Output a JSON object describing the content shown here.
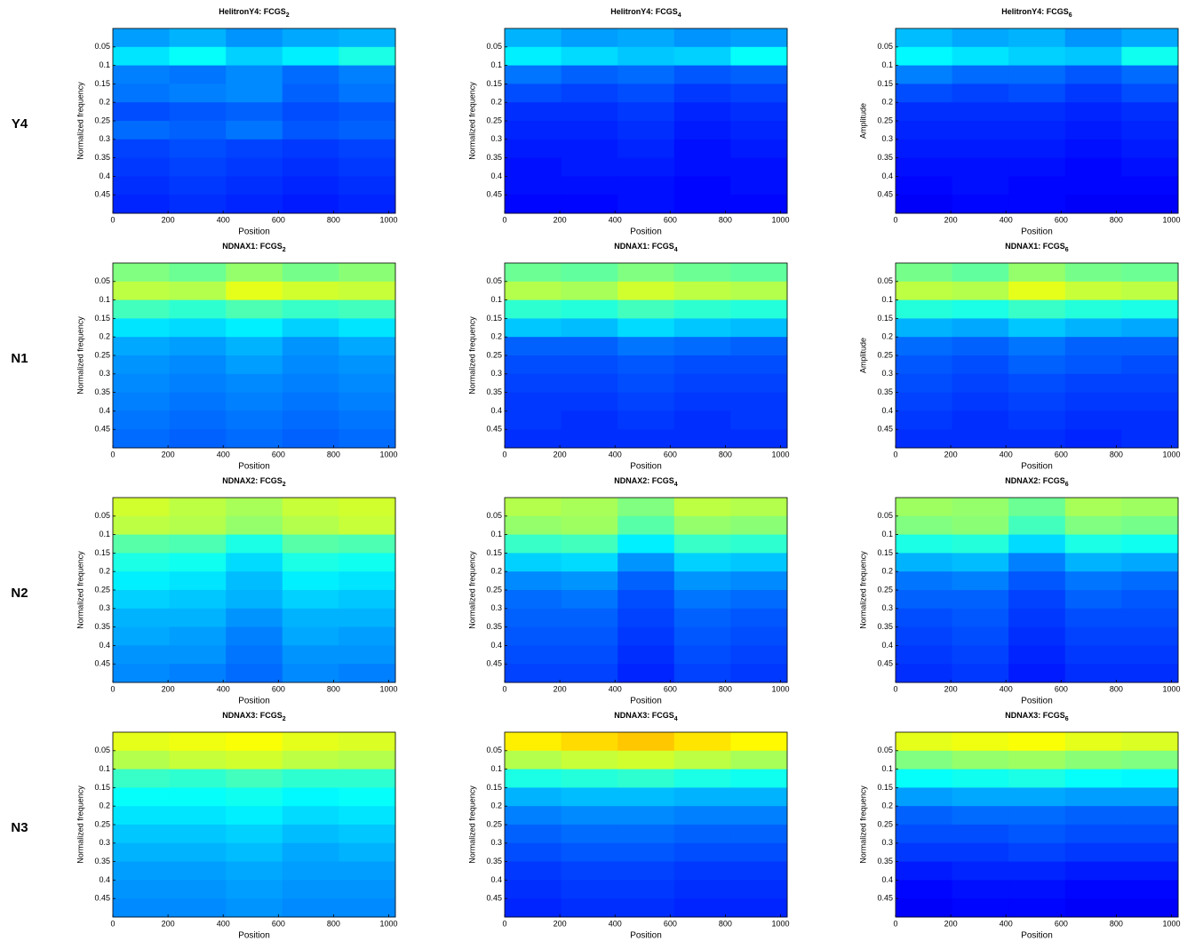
{
  "row_labels": [
    "Y4",
    "N1",
    "N2",
    "N3"
  ],
  "chart_data": [
    {
      "type": "heatmap",
      "title": "HelitronY4: FCGS",
      "title_subscript": "2",
      "xlabel": "Position",
      "ylabel": "Normalized frequency",
      "xlim": [
        0,
        1024
      ],
      "ylim": [
        0,
        0.5
      ],
      "xticks": [
        0,
        200,
        400,
        600,
        800,
        1000
      ],
      "yticks": [
        0.05,
        0.1,
        0.15,
        0.2,
        0.25,
        0.3,
        0.35,
        0.4,
        0.45
      ],
      "colormap": "jet",
      "zlim": [
        0,
        1
      ],
      "values": [
        [
          0.28,
          0.3,
          0.27,
          0.29,
          0.3
        ],
        [
          0.35,
          0.38,
          0.33,
          0.36,
          0.4
        ],
        [
          0.25,
          0.24,
          0.26,
          0.23,
          0.25
        ],
        [
          0.24,
          0.25,
          0.26,
          0.22,
          0.24
        ],
        [
          0.2,
          0.21,
          0.22,
          0.2,
          0.21
        ],
        [
          0.23,
          0.22,
          0.24,
          0.21,
          0.22
        ],
        [
          0.19,
          0.2,
          0.19,
          0.18,
          0.19
        ],
        [
          0.18,
          0.19,
          0.18,
          0.17,
          0.18
        ],
        [
          0.17,
          0.18,
          0.17,
          0.16,
          0.17
        ],
        [
          0.16,
          0.17,
          0.16,
          0.15,
          0.16
        ]
      ]
    },
    {
      "type": "heatmap",
      "title": "HelitronY4: FCGS",
      "title_subscript": "4",
      "xlabel": "Position",
      "ylabel": "Normalized frequency",
      "xlim": [
        0,
        1024
      ],
      "ylim": [
        0,
        0.5
      ],
      "xticks": [
        0,
        200,
        400,
        600,
        800,
        1000
      ],
      "yticks": [
        0.05,
        0.1,
        0.15,
        0.2,
        0.25,
        0.3,
        0.35,
        0.4,
        0.45
      ],
      "colormap": "jet",
      "zlim": [
        0,
        1
      ],
      "values": [
        [
          0.3,
          0.28,
          0.29,
          0.27,
          0.28
        ],
        [
          0.36,
          0.34,
          0.32,
          0.33,
          0.38
        ],
        [
          0.24,
          0.22,
          0.23,
          0.21,
          0.22
        ],
        [
          0.2,
          0.19,
          0.2,
          0.18,
          0.19
        ],
        [
          0.17,
          0.17,
          0.18,
          0.16,
          0.17
        ],
        [
          0.16,
          0.16,
          0.17,
          0.15,
          0.16
        ],
        [
          0.15,
          0.15,
          0.16,
          0.14,
          0.15
        ],
        [
          0.14,
          0.15,
          0.15,
          0.14,
          0.14
        ],
        [
          0.14,
          0.14,
          0.14,
          0.13,
          0.14
        ],
        [
          0.13,
          0.13,
          0.14,
          0.13,
          0.13
        ]
      ]
    },
    {
      "type": "heatmap",
      "title": "HelitronY4: FCGS",
      "title_subscript": "6",
      "xlabel": "Position",
      "ylabel": "Amplitude",
      "xlim": [
        0,
        1024
      ],
      "ylim": [
        0,
        0.5
      ],
      "xticks": [
        0,
        200,
        400,
        600,
        800,
        1000
      ],
      "yticks": [
        0.05,
        0.1,
        0.15,
        0.2,
        0.25,
        0.3,
        0.35,
        0.4,
        0.45
      ],
      "colormap": "jet",
      "zlim": [
        0,
        1
      ],
      "values": [
        [
          0.31,
          0.29,
          0.3,
          0.27,
          0.29
        ],
        [
          0.37,
          0.35,
          0.33,
          0.32,
          0.39
        ],
        [
          0.25,
          0.23,
          0.23,
          0.21,
          0.23
        ],
        [
          0.2,
          0.19,
          0.2,
          0.18,
          0.2
        ],
        [
          0.17,
          0.17,
          0.17,
          0.16,
          0.17
        ],
        [
          0.16,
          0.16,
          0.16,
          0.15,
          0.16
        ],
        [
          0.15,
          0.15,
          0.15,
          0.14,
          0.15
        ],
        [
          0.14,
          0.14,
          0.14,
          0.13,
          0.14
        ],
        [
          0.13,
          0.14,
          0.13,
          0.13,
          0.13
        ],
        [
          0.12,
          0.13,
          0.13,
          0.12,
          0.12
        ]
      ]
    },
    {
      "type": "heatmap",
      "title": "NDNAX1: FCGS",
      "title_subscript": "2",
      "xlabel": "Position",
      "ylabel": "Normalized frequency",
      "xlim": [
        0,
        1024
      ],
      "ylim": [
        0,
        0.5
      ],
      "xticks": [
        0,
        200,
        400,
        600,
        800,
        1000
      ],
      "yticks": [
        0.05,
        0.1,
        0.15,
        0.2,
        0.25,
        0.3,
        0.35,
        0.4,
        0.45
      ],
      "colormap": "jet",
      "zlim": [
        0,
        1
      ],
      "values": [
        [
          0.5,
          0.48,
          0.52,
          0.49,
          0.51
        ],
        [
          0.56,
          0.55,
          0.6,
          0.58,
          0.57
        ],
        [
          0.44,
          0.42,
          0.45,
          0.43,
          0.44
        ],
        [
          0.35,
          0.34,
          0.36,
          0.33,
          0.35
        ],
        [
          0.29,
          0.28,
          0.3,
          0.27,
          0.29
        ],
        [
          0.27,
          0.26,
          0.28,
          0.26,
          0.27
        ],
        [
          0.26,
          0.25,
          0.26,
          0.25,
          0.26
        ],
        [
          0.25,
          0.24,
          0.25,
          0.24,
          0.25
        ],
        [
          0.24,
          0.23,
          0.24,
          0.23,
          0.24
        ],
        [
          0.23,
          0.22,
          0.23,
          0.22,
          0.23
        ]
      ]
    },
    {
      "type": "heatmap",
      "title": "NDNAX1: FCGS",
      "title_subscript": "4",
      "xlabel": "Position",
      "ylabel": "Normalized frequency",
      "xlim": [
        0,
        1024
      ],
      "ylim": [
        0,
        0.5
      ],
      "xticks": [
        0,
        200,
        400,
        600,
        800,
        1000
      ],
      "yticks": [
        0.05,
        0.1,
        0.15,
        0.2,
        0.25,
        0.3,
        0.35,
        0.4,
        0.45
      ],
      "colormap": "jet",
      "zlim": [
        0,
        1
      ],
      "values": [
        [
          0.48,
          0.47,
          0.5,
          0.48,
          0.47
        ],
        [
          0.55,
          0.54,
          0.58,
          0.56,
          0.55
        ],
        [
          0.42,
          0.41,
          0.44,
          0.42,
          0.41
        ],
        [
          0.32,
          0.31,
          0.34,
          0.32,
          0.31
        ],
        [
          0.22,
          0.22,
          0.24,
          0.23,
          0.22
        ],
        [
          0.2,
          0.2,
          0.21,
          0.2,
          0.2
        ],
        [
          0.19,
          0.19,
          0.2,
          0.19,
          0.19
        ],
        [
          0.18,
          0.18,
          0.19,
          0.18,
          0.18
        ],
        [
          0.18,
          0.17,
          0.18,
          0.17,
          0.18
        ],
        [
          0.17,
          0.17,
          0.17,
          0.17,
          0.17
        ]
      ]
    },
    {
      "type": "heatmap",
      "title": "NDNAX1: FCGS",
      "title_subscript": "6",
      "xlabel": "Position",
      "ylabel": "Amplitude",
      "xlim": [
        0,
        1024
      ],
      "ylim": [
        0,
        0.5
      ],
      "xticks": [
        0,
        200,
        400,
        600,
        800,
        1000
      ],
      "yticks": [
        0.05,
        0.1,
        0.15,
        0.2,
        0.25,
        0.3,
        0.35,
        0.4,
        0.45
      ],
      "colormap": "jet",
      "zlim": [
        0,
        1
      ],
      "values": [
        [
          0.49,
          0.47,
          0.52,
          0.49,
          0.48
        ],
        [
          0.56,
          0.55,
          0.6,
          0.57,
          0.56
        ],
        [
          0.41,
          0.4,
          0.43,
          0.41,
          0.4
        ],
        [
          0.3,
          0.29,
          0.32,
          0.3,
          0.29
        ],
        [
          0.23,
          0.22,
          0.24,
          0.22,
          0.22
        ],
        [
          0.21,
          0.2,
          0.22,
          0.21,
          0.2
        ],
        [
          0.2,
          0.19,
          0.2,
          0.19,
          0.19
        ],
        [
          0.19,
          0.18,
          0.19,
          0.18,
          0.18
        ],
        [
          0.18,
          0.17,
          0.18,
          0.17,
          0.17
        ],
        [
          0.17,
          0.17,
          0.17,
          0.16,
          0.17
        ]
      ]
    },
    {
      "type": "heatmap",
      "title": "NDNAX2: FCGS",
      "title_subscript": "2",
      "xlabel": "Position",
      "ylabel": "Normalized frequency",
      "xlim": [
        0,
        1024
      ],
      "ylim": [
        0,
        0.5
      ],
      "xticks": [
        0,
        200,
        400,
        600,
        800,
        1000
      ],
      "yticks": [
        0.05,
        0.1,
        0.15,
        0.2,
        0.25,
        0.3,
        0.35,
        0.4,
        0.45
      ],
      "colormap": "jet",
      "zlim": [
        0,
        1
      ],
      "values": [
        [
          0.58,
          0.56,
          0.54,
          0.57,
          0.58
        ],
        [
          0.56,
          0.55,
          0.52,
          0.55,
          0.57
        ],
        [
          0.46,
          0.45,
          0.4,
          0.46,
          0.45
        ],
        [
          0.4,
          0.39,
          0.34,
          0.4,
          0.39
        ],
        [
          0.36,
          0.35,
          0.31,
          0.36,
          0.35
        ],
        [
          0.33,
          0.32,
          0.3,
          0.33,
          0.32
        ],
        [
          0.3,
          0.3,
          0.27,
          0.3,
          0.3
        ],
        [
          0.29,
          0.28,
          0.25,
          0.29,
          0.28
        ],
        [
          0.27,
          0.27,
          0.24,
          0.27,
          0.27
        ],
        [
          0.26,
          0.25,
          0.23,
          0.26,
          0.25
        ]
      ]
    },
    {
      "type": "heatmap",
      "title": "NDNAX2: FCGS",
      "title_subscript": "4",
      "xlabel": "Position",
      "ylabel": "Normalized frequency",
      "xlim": [
        0,
        1024
      ],
      "ylim": [
        0,
        0.5
      ],
      "xticks": [
        0,
        200,
        400,
        600,
        800,
        1000
      ],
      "yticks": [
        0.05,
        0.1,
        0.15,
        0.2,
        0.25,
        0.3,
        0.35,
        0.4,
        0.45
      ],
      "colormap": "jet",
      "zlim": [
        0,
        1
      ],
      "values": [
        [
          0.55,
          0.54,
          0.5,
          0.56,
          0.55
        ],
        [
          0.52,
          0.53,
          0.46,
          0.52,
          0.51
        ],
        [
          0.43,
          0.44,
          0.36,
          0.43,
          0.42
        ],
        [
          0.33,
          0.34,
          0.27,
          0.33,
          0.32
        ],
        [
          0.26,
          0.27,
          0.22,
          0.27,
          0.26
        ],
        [
          0.23,
          0.24,
          0.2,
          0.24,
          0.23
        ],
        [
          0.22,
          0.22,
          0.19,
          0.22,
          0.21
        ],
        [
          0.21,
          0.21,
          0.18,
          0.21,
          0.2
        ],
        [
          0.2,
          0.2,
          0.17,
          0.2,
          0.19
        ],
        [
          0.19,
          0.19,
          0.16,
          0.19,
          0.18
        ]
      ]
    },
    {
      "type": "heatmap",
      "title": "NDNAX2: FCGS",
      "title_subscript": "6",
      "xlabel": "Position",
      "ylabel": "Normalized frequency",
      "xlim": [
        0,
        1024
      ],
      "ylim": [
        0,
        0.5
      ],
      "xticks": [
        0,
        200,
        400,
        600,
        800,
        1000
      ],
      "yticks": [
        0.05,
        0.1,
        0.15,
        0.2,
        0.25,
        0.3,
        0.35,
        0.4,
        0.45
      ],
      "colormap": "jet",
      "zlim": [
        0,
        1
      ],
      "values": [
        [
          0.53,
          0.52,
          0.48,
          0.54,
          0.53
        ],
        [
          0.5,
          0.51,
          0.44,
          0.5,
          0.49
        ],
        [
          0.4,
          0.41,
          0.34,
          0.4,
          0.39
        ],
        [
          0.3,
          0.31,
          0.25,
          0.3,
          0.29
        ],
        [
          0.24,
          0.25,
          0.21,
          0.24,
          0.23
        ],
        [
          0.22,
          0.22,
          0.19,
          0.22,
          0.21
        ],
        [
          0.2,
          0.21,
          0.18,
          0.2,
          0.2
        ],
        [
          0.19,
          0.2,
          0.17,
          0.19,
          0.19
        ],
        [
          0.18,
          0.19,
          0.16,
          0.18,
          0.18
        ],
        [
          0.17,
          0.18,
          0.15,
          0.17,
          0.17
        ]
      ]
    },
    {
      "type": "heatmap",
      "title": "NDNAX3: FCGS",
      "title_subscript": "2",
      "xlabel": "Position",
      "ylabel": "Normalized frequency",
      "xlim": [
        0,
        1024
      ],
      "ylim": [
        0,
        0.5
      ],
      "xticks": [
        0,
        200,
        400,
        600,
        800,
        1000
      ],
      "yticks": [
        0.05,
        0.1,
        0.15,
        0.2,
        0.25,
        0.3,
        0.35,
        0.4,
        0.45
      ],
      "colormap": "jet",
      "zlim": [
        0,
        1
      ],
      "values": [
        [
          0.6,
          0.61,
          0.62,
          0.6,
          0.59
        ],
        [
          0.55,
          0.57,
          0.58,
          0.56,
          0.55
        ],
        [
          0.43,
          0.42,
          0.44,
          0.42,
          0.42
        ],
        [
          0.38,
          0.38,
          0.39,
          0.37,
          0.38
        ],
        [
          0.35,
          0.35,
          0.36,
          0.34,
          0.35
        ],
        [
          0.32,
          0.32,
          0.33,
          0.31,
          0.32
        ],
        [
          0.3,
          0.3,
          0.31,
          0.29,
          0.3
        ],
        [
          0.28,
          0.28,
          0.29,
          0.28,
          0.28
        ],
        [
          0.27,
          0.27,
          0.28,
          0.27,
          0.27
        ],
        [
          0.26,
          0.26,
          0.27,
          0.26,
          0.26
        ]
      ]
    },
    {
      "type": "heatmap",
      "title": "NDNAX3: FCGS",
      "title_subscript": "4",
      "xlabel": "Position",
      "ylabel": "Normalized frequency",
      "xlim": [
        0,
        1024
      ],
      "ylim": [
        0,
        0.5
      ],
      "xticks": [
        0,
        200,
        400,
        600,
        800,
        1000
      ],
      "yticks": [
        0.05,
        0.1,
        0.15,
        0.2,
        0.25,
        0.3,
        0.35,
        0.4,
        0.45
      ],
      "colormap": "jet",
      "zlim": [
        0,
        1
      ],
      "values": [
        [
          0.64,
          0.66,
          0.68,
          0.65,
          0.63
        ],
        [
          0.55,
          0.57,
          0.58,
          0.56,
          0.54
        ],
        [
          0.4,
          0.41,
          0.42,
          0.4,
          0.39
        ],
        [
          0.3,
          0.31,
          0.31,
          0.3,
          0.3
        ],
        [
          0.25,
          0.26,
          0.26,
          0.25,
          0.25
        ],
        [
          0.22,
          0.23,
          0.23,
          0.22,
          0.22
        ],
        [
          0.2,
          0.21,
          0.21,
          0.2,
          0.2
        ],
        [
          0.18,
          0.19,
          0.19,
          0.18,
          0.18
        ],
        [
          0.17,
          0.18,
          0.18,
          0.17,
          0.17
        ],
        [
          0.16,
          0.17,
          0.17,
          0.16,
          0.16
        ]
      ]
    },
    {
      "type": "heatmap",
      "title": "NDNAX3: FCGS",
      "title_subscript": "6",
      "xlabel": "Position",
      "ylabel": "Normalized frequency",
      "xlim": [
        0,
        1024
      ],
      "ylim": [
        0,
        0.5
      ],
      "xticks": [
        0,
        200,
        400,
        600,
        800,
        1000
      ],
      "yticks": [
        0.05,
        0.1,
        0.15,
        0.2,
        0.25,
        0.3,
        0.35,
        0.4,
        0.45
      ],
      "colormap": "jet",
      "zlim": [
        0,
        1
      ],
      "values": [
        [
          0.6,
          0.61,
          0.62,
          0.6,
          0.59
        ],
        [
          0.5,
          0.52,
          0.53,
          0.51,
          0.5
        ],
        [
          0.38,
          0.39,
          0.4,
          0.38,
          0.37
        ],
        [
          0.28,
          0.29,
          0.29,
          0.28,
          0.28
        ],
        [
          0.22,
          0.23,
          0.23,
          0.22,
          0.22
        ],
        [
          0.2,
          0.2,
          0.21,
          0.2,
          0.2
        ],
        [
          0.18,
          0.18,
          0.19,
          0.18,
          0.18
        ],
        [
          0.15,
          0.16,
          0.16,
          0.15,
          0.15
        ],
        [
          0.13,
          0.14,
          0.14,
          0.13,
          0.13
        ],
        [
          0.12,
          0.13,
          0.13,
          0.12,
          0.12
        ]
      ]
    }
  ]
}
